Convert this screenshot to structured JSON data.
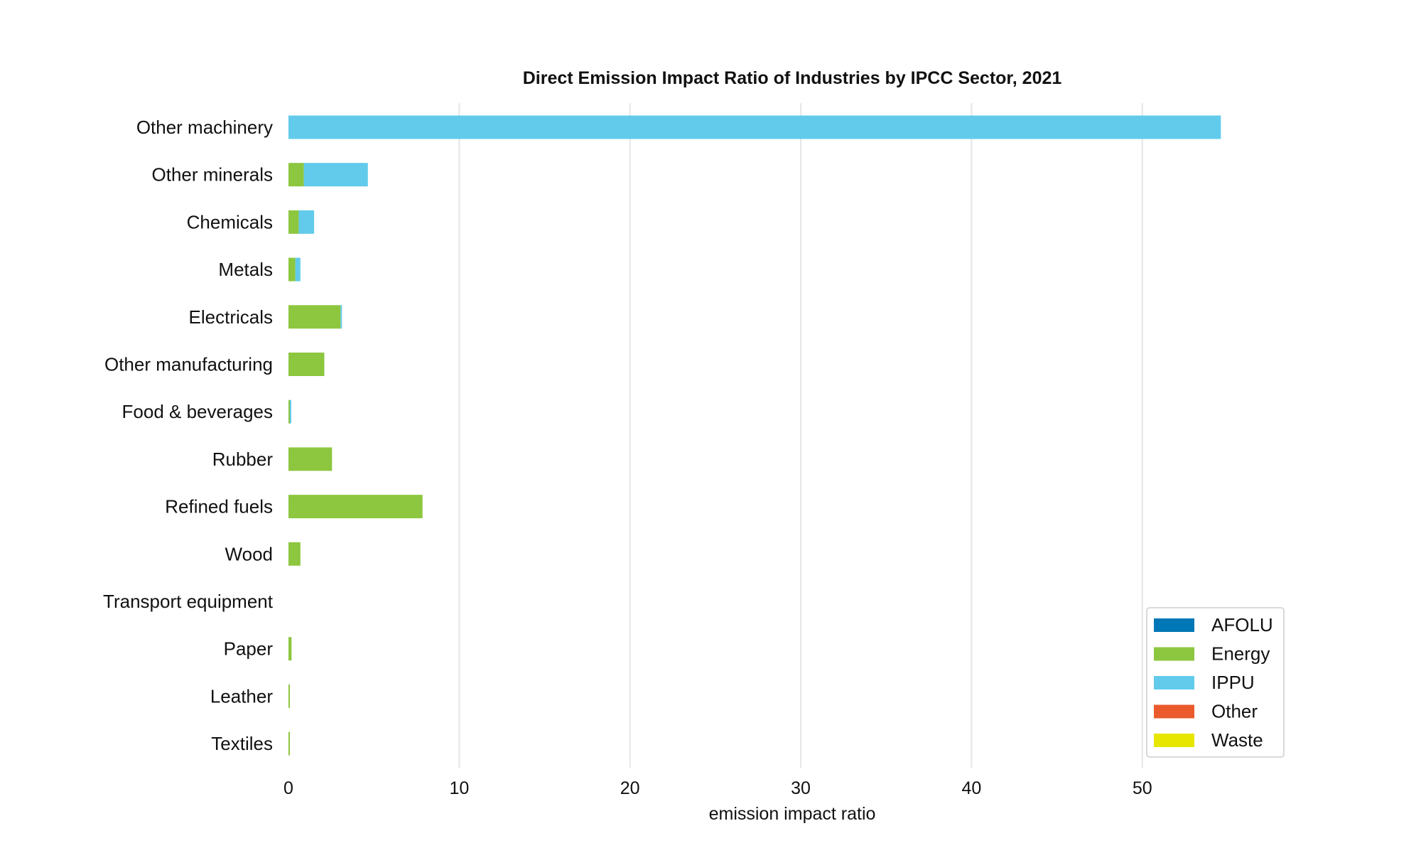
{
  "chart_data": {
    "type": "bar",
    "orientation": "horizontal",
    "stacked": true,
    "title": "Direct Emission Impact Ratio of Industries by IPCC Sector, 2021",
    "xlabel": "emission impact ratio",
    "ylabel": "",
    "xlim": [
      0,
      57.5
    ],
    "xticks": [
      0,
      10,
      20,
      30,
      40,
      50
    ],
    "grid": "vertical",
    "legend_position": "bottom-right",
    "categories": [
      "Other machinery",
      "Other minerals",
      "Chemicals",
      "Metals",
      "Electricals",
      "Other manufacturing",
      "Food & beverages",
      "Rubber",
      "Refined fuels",
      "Wood",
      "Transport equipment",
      "Paper",
      "Leather",
      "Textiles"
    ],
    "series": [
      {
        "name": "AFOLU",
        "color": "#0077b6",
        "values": [
          0,
          0,
          0,
          0,
          0,
          0,
          0,
          0,
          0,
          0,
          0,
          0,
          0,
          0
        ]
      },
      {
        "name": "Energy",
        "color": "#8dc63f",
        "values": [
          0,
          0.9,
          0.6,
          0.4,
          3.05,
          2.1,
          0.08,
          2.55,
          7.85,
          0.7,
          0,
          0.18,
          0.05,
          0.05
        ]
      },
      {
        "name": "IPPU",
        "color": "#62cbeb",
        "values": [
          54.6,
          3.75,
          0.9,
          0.3,
          0.05,
          0,
          0.05,
          0,
          0,
          0,
          0,
          0,
          0,
          0
        ]
      },
      {
        "name": "Other",
        "color": "#ea5a2d",
        "values": [
          0,
          0,
          0,
          0,
          0,
          0,
          0,
          0,
          0,
          0,
          0,
          0,
          0,
          0
        ]
      },
      {
        "name": "Waste",
        "color": "#e6e600",
        "values": [
          0,
          0,
          0,
          0,
          0,
          0,
          0,
          0,
          0,
          0,
          0,
          0,
          0,
          0
        ]
      }
    ]
  }
}
